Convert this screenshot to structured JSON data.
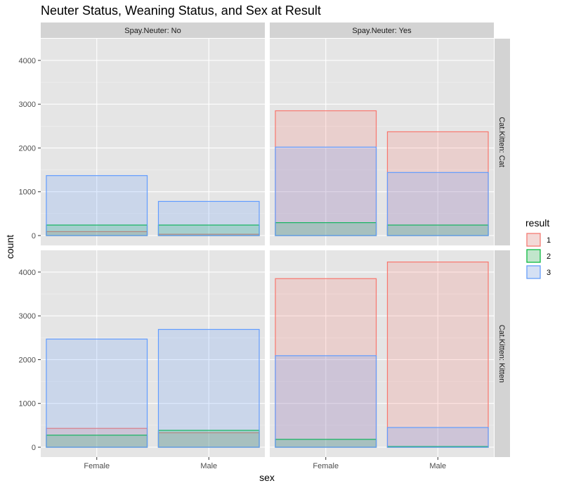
{
  "chart_data": {
    "type": "bar",
    "title": "Neuter Status, Weaning Status, and Sex at Result",
    "xlabel": "sex",
    "ylabel": "count",
    "categories": [
      "Female",
      "Male"
    ],
    "ylim": [
      0,
      4400
    ],
    "yticks": [
      0,
      1000,
      2000,
      3000,
      4000
    ],
    "grid": true,
    "bar_position": "identity (overlapping)",
    "facet_cols": {
      "label_prefix": "Spay.Neuter: ",
      "values": [
        "No",
        "Yes"
      ]
    },
    "facet_rows": {
      "label_prefix": "Cat.Kitten: ",
      "values": [
        "Cat",
        "Kitten"
      ]
    },
    "legend": {
      "title": "result",
      "position": "right",
      "items": [
        {
          "label": "1",
          "color": "#f8766d"
        },
        {
          "label": "2",
          "color": "#00ba38"
        },
        {
          "label": "3",
          "color": "#619cff"
        }
      ]
    },
    "panels": [
      {
        "col": "No",
        "row": "Cat",
        "series": [
          {
            "name": "1",
            "values": [
              90,
              30
            ]
          },
          {
            "name": "2",
            "values": [
              240,
              240
            ]
          },
          {
            "name": "3",
            "values": [
              1370,
              780
            ]
          }
        ]
      },
      {
        "col": "Yes",
        "row": "Cat",
        "series": [
          {
            "name": "1",
            "values": [
              2850,
              2370
            ]
          },
          {
            "name": "2",
            "values": [
              295,
              240
            ]
          },
          {
            "name": "3",
            "values": [
              2020,
              1440
            ]
          }
        ]
      },
      {
        "col": "No",
        "row": "Kitten",
        "series": [
          {
            "name": "1",
            "values": [
              430,
              330
            ]
          },
          {
            "name": "2",
            "values": [
              275,
              385
            ]
          },
          {
            "name": "3",
            "values": [
              2470,
              2690
            ]
          }
        ]
      },
      {
        "col": "Yes",
        "row": "Kitten",
        "series": [
          {
            "name": "1",
            "values": [
              3850,
              4230
            ]
          },
          {
            "name": "2",
            "values": [
              180,
              15
            ]
          },
          {
            "name": "3",
            "values": [
              2090,
              450
            ]
          }
        ]
      }
    ]
  }
}
